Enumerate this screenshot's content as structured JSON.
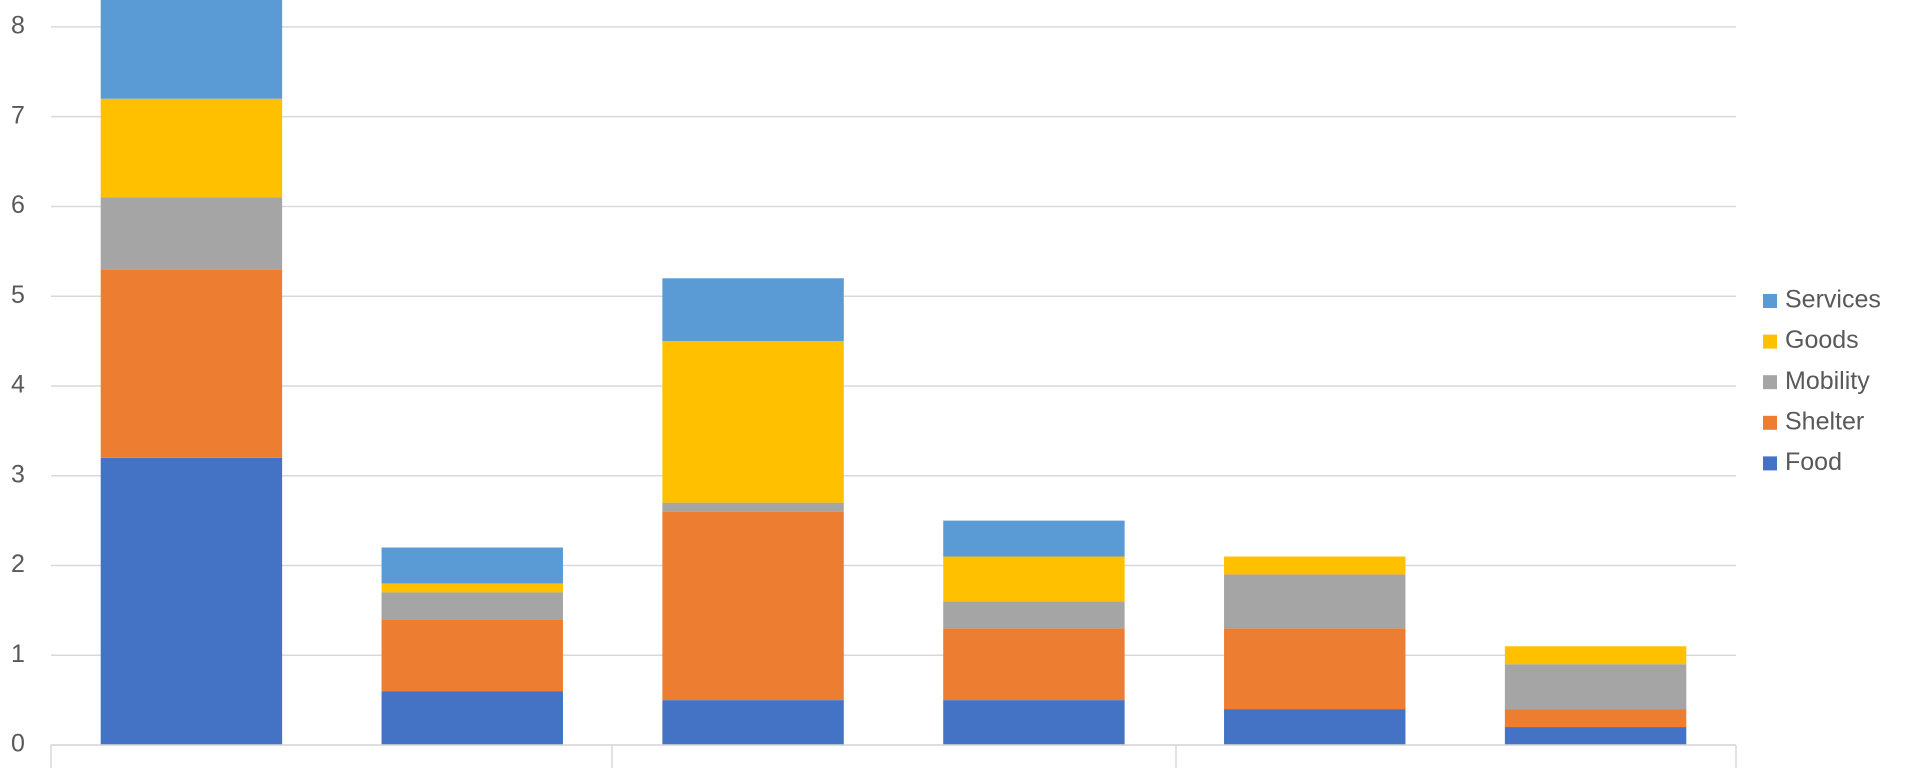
{
  "chart_data": {
    "type": "stacked-bar",
    "categories": [
      null,
      null,
      null,
      null,
      null,
      null
    ],
    "series": [
      {
        "name": "Food",
        "color": "#4472c4",
        "values": [
          3.2,
          0.6,
          0.5,
          0.5,
          0.4,
          0.2
        ]
      },
      {
        "name": "Shelter",
        "color": "#ed7d31",
        "values": [
          2.1,
          0.8,
          2.1,
          0.8,
          0.9,
          0.2
        ]
      },
      {
        "name": "Mobility",
        "color": "#a5a5a5",
        "values": [
          0.8,
          0.3,
          0.1,
          0.3,
          0.6,
          0.5
        ]
      },
      {
        "name": "Goods",
        "color": "#ffc000",
        "values": [
          1.1,
          0.1,
          1.8,
          0.5,
          0.2,
          0.2
        ]
      },
      {
        "name": "Services",
        "color": "#5b9bd5",
        "values": [
          1.1,
          0.4,
          0.7,
          0.4,
          0,
          0
        ]
      }
    ],
    "ylim": [
      0,
      8.3
    ],
    "yticks": [
      0,
      1,
      2,
      3,
      4,
      5,
      6,
      7,
      8
    ],
    "grid": true,
    "legend": "right"
  }
}
